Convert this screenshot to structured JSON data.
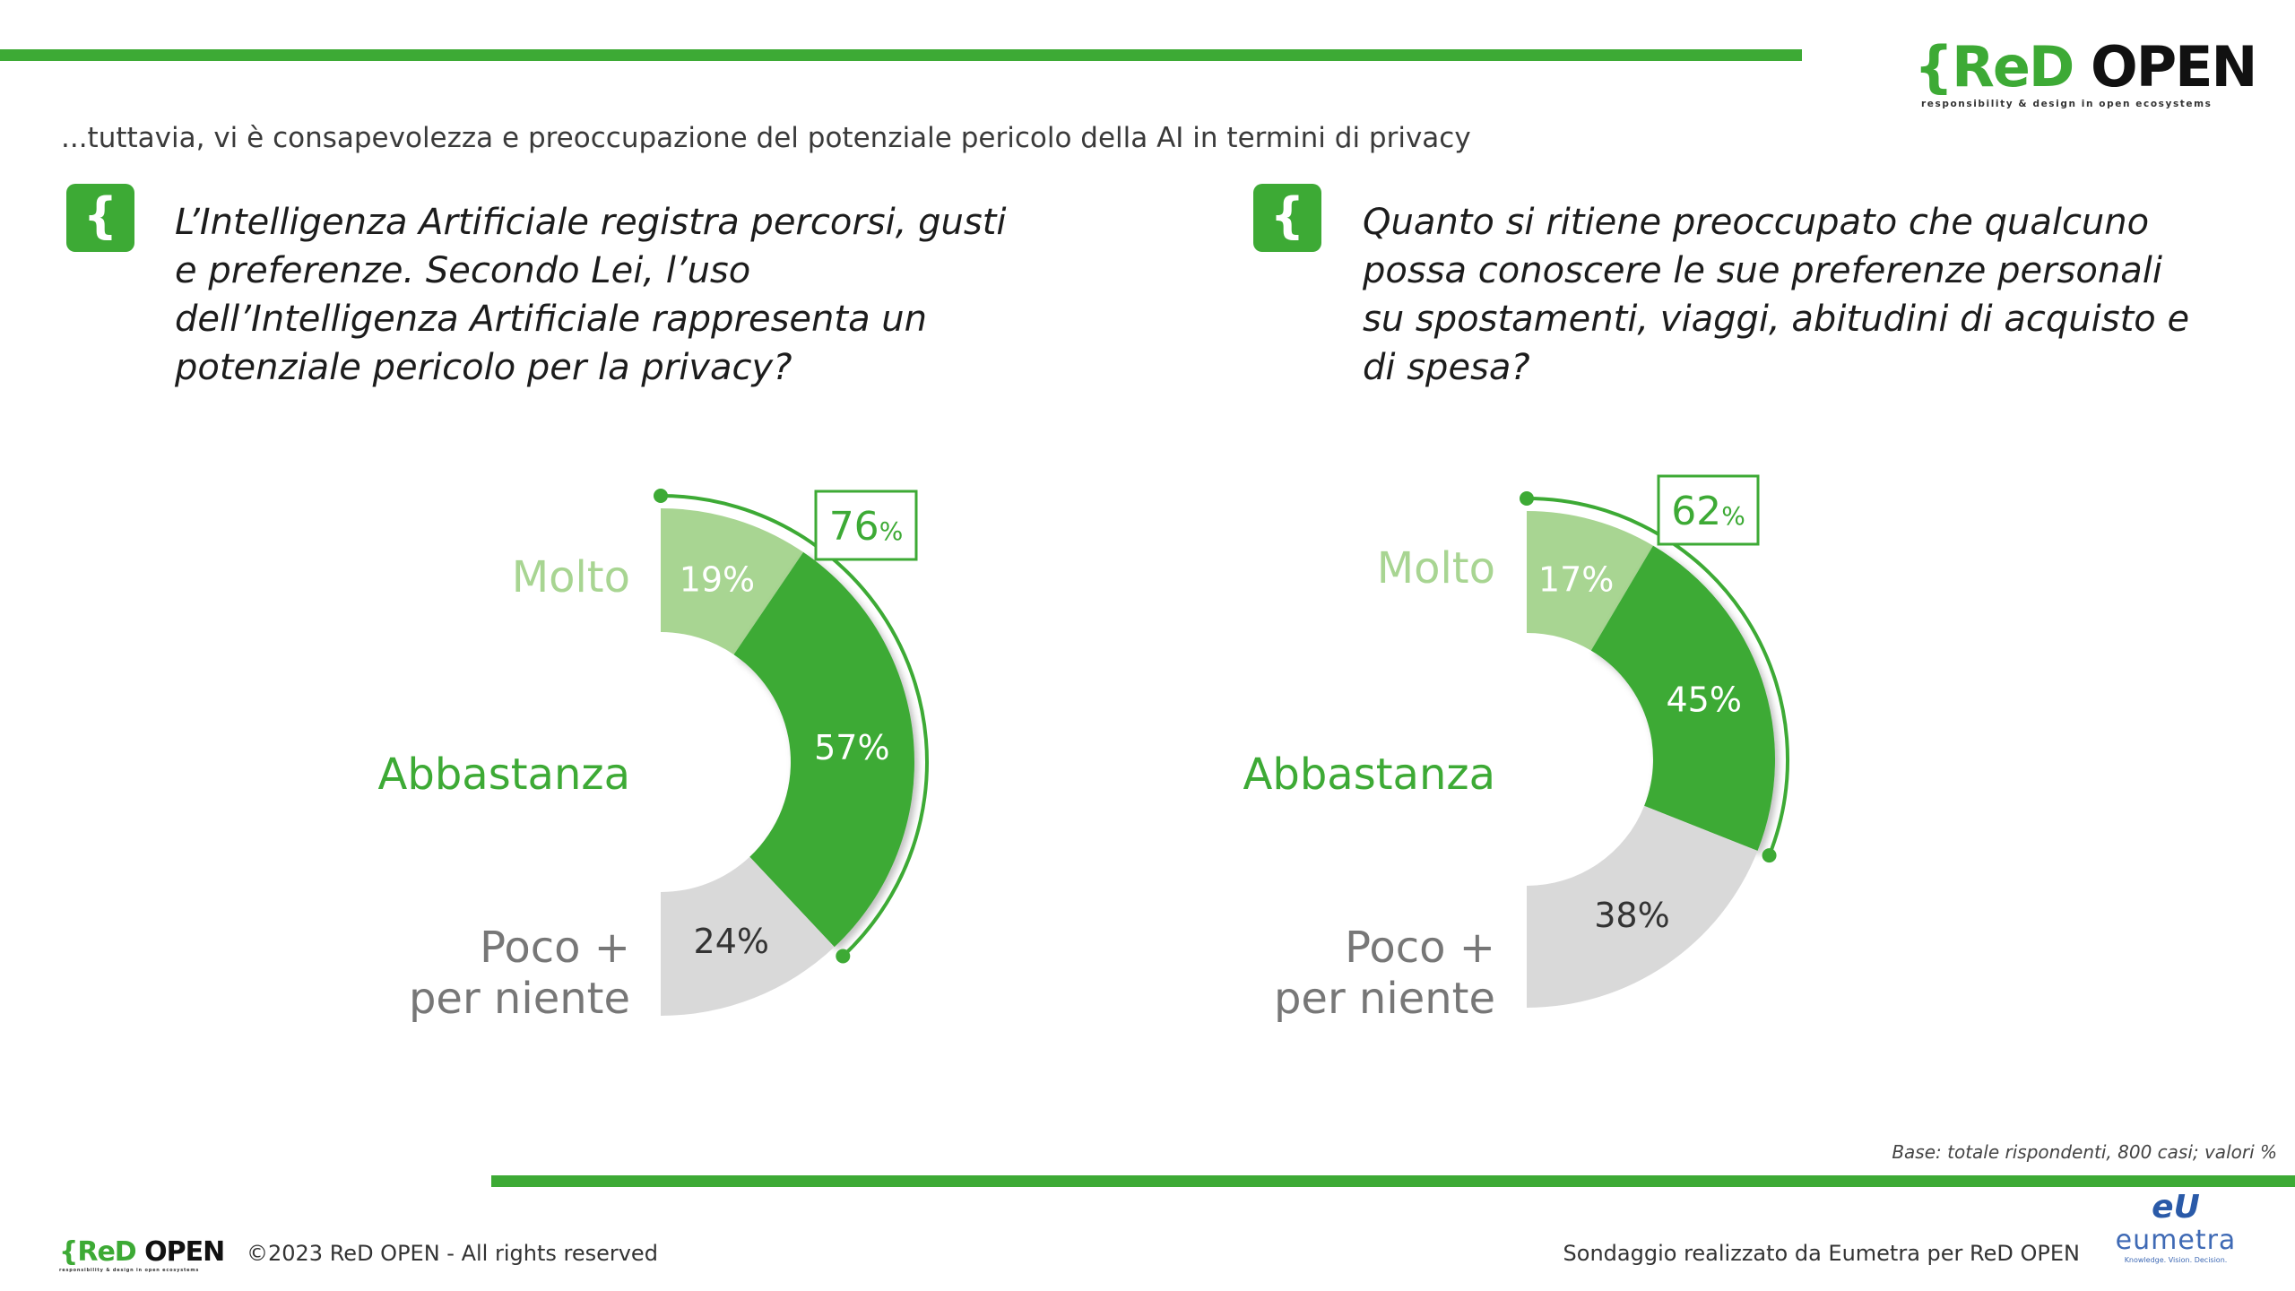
{
  "header": {
    "logo": {
      "brace": "{",
      "red": "ReD",
      "open": "OPEN",
      "tagline": "responsibility & design in open ecosystems"
    },
    "subtitle": "...tuttavia, vi è consapevolezza e preoccupazione del potenziale pericolo della AI in termini di privacy"
  },
  "questions": [
    {
      "icon": "{",
      "text": "L’Intelligenza Artificiale registra percorsi, gusti e preferenze. Secondo Lei, l’uso dell’Intelligenza Artificiale rappresenta un potenziale pericolo per la privacy?"
    },
    {
      "icon": "{",
      "text": "Quanto si ritiene preoccupato che qualcuno possa conoscere le sue preferenze personali su spostamenti, viaggi, abitudini di acquisto e di spesa?"
    }
  ],
  "chart_data": [
    {
      "type": "pie",
      "subtype": "half-donut",
      "categories": [
        "Molto",
        "Abbastanza",
        "Poco + per niente"
      ],
      "values": [
        19,
        57,
        24
      ],
      "value_labels": [
        "19%",
        "57%",
        "24%"
      ],
      "callout": {
        "value": "76",
        "unit": "%"
      },
      "colors": [
        "#a8d592",
        "#3daa35",
        "#d9d9d9"
      ],
      "label_colors": [
        "#a8d592",
        "#3daa35",
        "#777777"
      ]
    },
    {
      "type": "pie",
      "subtype": "half-donut",
      "categories": [
        "Molto",
        "Abbastanza",
        "Poco + per niente"
      ],
      "values": [
        17,
        45,
        38
      ],
      "value_labels": [
        "17%",
        "45%",
        "38%"
      ],
      "callout": {
        "value": "62",
        "unit": "%"
      },
      "colors": [
        "#a8d592",
        "#3daa35",
        "#d9d9d9"
      ],
      "label_colors": [
        "#a8d592",
        "#3daa35",
        "#777777"
      ]
    }
  ],
  "base_note": "Base: totale rispondenti, 800 casi; valori %",
  "footer": {
    "copyright": "©2023 ReD OPEN - All rights reserved",
    "credit": "Sondaggio realizzato da Eumetra per ReD OPEN",
    "eumetra": {
      "mark": "eU",
      "name": "eumetra",
      "tagline": "Knowledge. Vision. Decision."
    }
  },
  "colors": {
    "accent": "#3daa35",
    "light_green": "#a8d592",
    "grey": "#d9d9d9"
  }
}
